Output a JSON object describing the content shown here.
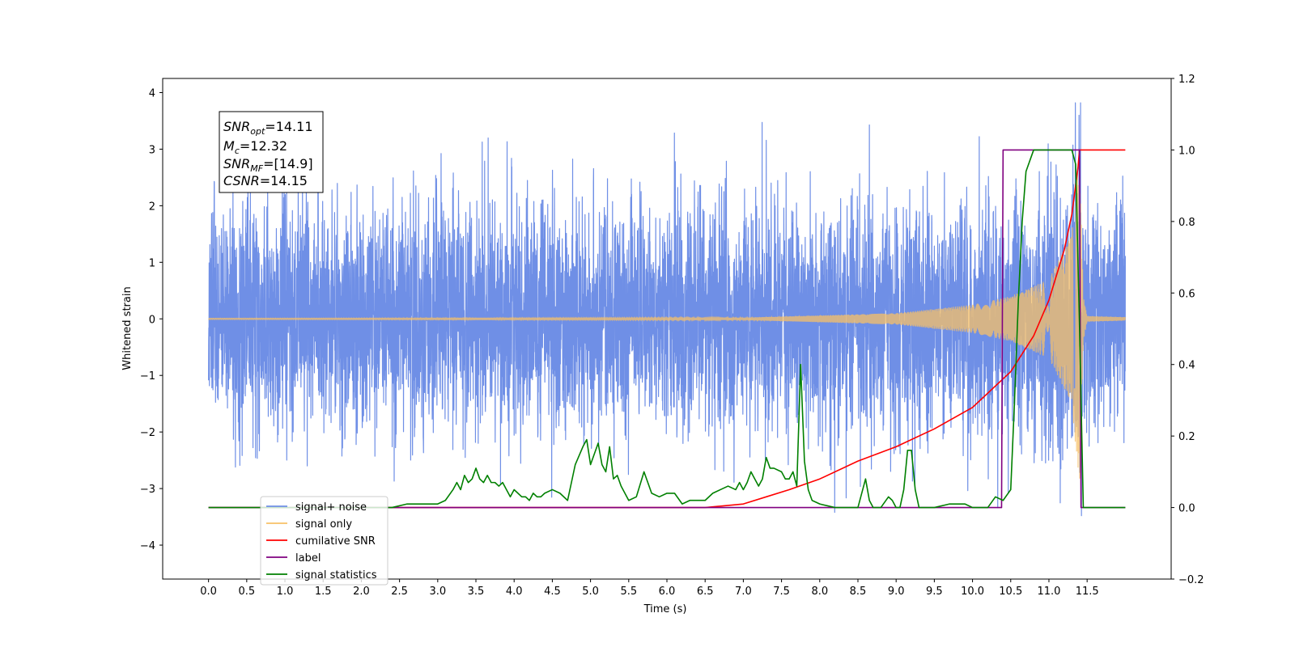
{
  "chart_data": {
    "type": "line",
    "xlabel": "Time (s)",
    "ylabel": "Whitened strain",
    "xlim": [
      -0.6,
      12.6
    ],
    "ylim": [
      -4.6,
      4.25
    ],
    "y2lim": [
      -0.2,
      1.2
    ],
    "x_ticks": [
      0.0,
      0.5,
      1.0,
      1.5,
      2.0,
      2.5,
      3.0,
      3.5,
      4.0,
      4.5,
      5.0,
      5.5,
      6.0,
      6.5,
      7.0,
      7.5,
      8.0,
      8.5,
      9.0,
      9.5,
      10.0,
      10.5,
      11.0,
      11.5
    ],
    "x_tick_labels": [
      "0.0",
      "0.5",
      "1.0",
      "1.5",
      "2.0",
      "2.5",
      "3.0",
      "3.5",
      "4.0",
      "4.5",
      "5.0",
      "5.5",
      "6.0",
      "6.5",
      "7.0",
      "7.5",
      "8.0",
      "8.5",
      "9.0",
      "9.5",
      "10.0",
      "10.5",
      "11.0",
      "11.5"
    ],
    "y_ticks": [
      -4,
      -3,
      -2,
      -1,
      0,
      1,
      2,
      3,
      4
    ],
    "y_tick_labels": [
      "−4",
      "−3",
      "−2",
      "−1",
      "0",
      "1",
      "2",
      "3",
      "4"
    ],
    "y2_ticks": [
      -0.2,
      0.0,
      0.2,
      0.4,
      0.6,
      0.8,
      1.0,
      1.2
    ],
    "y2_tick_labels": [
      "−0.2",
      "0.0",
      "0.2",
      "0.4",
      "0.6",
      "0.8",
      "1.0",
      "1.2"
    ],
    "grid": false,
    "legend_position": "lower-left",
    "info_box": {
      "snr_opt": "14.11",
      "mc": "12.32",
      "snr_mf": "[14.9]",
      "csnr": "14.15"
    },
    "series": [
      {
        "name": "signal+ noise",
        "axis": "left",
        "color": "#6f8fe6",
        "kind": "noise",
        "t_start": 0.0,
        "t_end": 12.0,
        "envelope_sigma": 1.0,
        "min": -3.65,
        "max": 3.82
      },
      {
        "name": "signal only",
        "axis": "left",
        "color": "#f7c067",
        "kind": "chirp",
        "t_start": 0.0,
        "t_end": 12.0,
        "merger_time": 11.4,
        "amplitude_points": [
          [
            0.0,
            0.01
          ],
          [
            7.0,
            0.02
          ],
          [
            8.0,
            0.06
          ],
          [
            9.0,
            0.1
          ],
          [
            10.0,
            0.25
          ],
          [
            10.5,
            0.4
          ],
          [
            11.0,
            0.7
          ],
          [
            11.3,
            1.5
          ],
          [
            11.4,
            3.0
          ],
          [
            11.45,
            0.4
          ],
          [
            11.5,
            0.05
          ],
          [
            12.0,
            0.03
          ]
        ]
      },
      {
        "name": "cumilative SNR",
        "axis": "right",
        "color": "#ff0000",
        "x": [
          0.0,
          6.5,
          7.0,
          7.3,
          7.6,
          8.0,
          8.5,
          9.0,
          9.5,
          10.0,
          10.5,
          10.8,
          11.0,
          11.2,
          11.3,
          11.38,
          11.4,
          12.0
        ],
        "y": [
          0.0,
          0.0,
          0.01,
          0.03,
          0.05,
          0.08,
          0.13,
          0.17,
          0.22,
          0.28,
          0.38,
          0.48,
          0.58,
          0.72,
          0.82,
          0.95,
          1.0,
          1.0
        ]
      },
      {
        "name": "label",
        "axis": "right",
        "color": "#800080",
        "x": [
          0.0,
          10.38,
          10.4,
          11.4,
          11.42,
          12.0
        ],
        "y": [
          0.0,
          0.0,
          1.0,
          1.0,
          0.0,
          0.0
        ]
      },
      {
        "name": "signal statistics",
        "axis": "right",
        "color": "#008000",
        "x": [
          0.0,
          2.4,
          2.6,
          2.8,
          3.0,
          3.1,
          3.2,
          3.25,
          3.3,
          3.35,
          3.4,
          3.45,
          3.5,
          3.55,
          3.6,
          3.65,
          3.7,
          3.75,
          3.8,
          3.85,
          3.9,
          3.95,
          4.0,
          4.05,
          4.1,
          4.15,
          4.2,
          4.25,
          4.3,
          4.35,
          4.4,
          4.5,
          4.6,
          4.7,
          4.8,
          4.9,
          4.95,
          5.0,
          5.05,
          5.1,
          5.15,
          5.2,
          5.25,
          5.3,
          5.35,
          5.4,
          5.5,
          5.6,
          5.7,
          5.8,
          5.9,
          6.0,
          6.1,
          6.2,
          6.3,
          6.4,
          6.5,
          6.6,
          6.7,
          6.8,
          6.9,
          6.95,
          7.0,
          7.05,
          7.1,
          7.15,
          7.2,
          7.25,
          7.3,
          7.35,
          7.4,
          7.5,
          7.55,
          7.6,
          7.65,
          7.7,
          7.75,
          7.8,
          7.85,
          7.9,
          8.0,
          8.2,
          8.4,
          8.5,
          8.6,
          8.65,
          8.7,
          8.75,
          8.8,
          8.9,
          8.95,
          9.0,
          9.05,
          9.1,
          9.15,
          9.2,
          9.25,
          9.3,
          9.35,
          9.5,
          9.7,
          9.8,
          9.9,
          10.0,
          10.2,
          10.3,
          10.4,
          10.5,
          10.55,
          10.6,
          10.65,
          10.7,
          10.75,
          10.8,
          11.0,
          11.3,
          11.35,
          11.4,
          11.45,
          12.0
        ],
        "y": [
          0.0,
          0.0,
          0.01,
          0.01,
          0.01,
          0.02,
          0.05,
          0.07,
          0.05,
          0.09,
          0.07,
          0.08,
          0.11,
          0.08,
          0.07,
          0.09,
          0.07,
          0.07,
          0.06,
          0.07,
          0.05,
          0.03,
          0.05,
          0.04,
          0.03,
          0.03,
          0.02,
          0.04,
          0.03,
          0.03,
          0.04,
          0.05,
          0.04,
          0.02,
          0.12,
          0.17,
          0.19,
          0.12,
          0.15,
          0.18,
          0.12,
          0.1,
          0.17,
          0.08,
          0.09,
          0.06,
          0.02,
          0.03,
          0.1,
          0.04,
          0.03,
          0.04,
          0.04,
          0.01,
          0.02,
          0.02,
          0.02,
          0.04,
          0.05,
          0.06,
          0.05,
          0.07,
          0.05,
          0.07,
          0.1,
          0.08,
          0.06,
          0.08,
          0.14,
          0.11,
          0.11,
          0.1,
          0.08,
          0.08,
          0.1,
          0.06,
          0.4,
          0.13,
          0.05,
          0.02,
          0.01,
          0.0,
          0.0,
          0.0,
          0.08,
          0.02,
          0.0,
          0.0,
          0.0,
          0.03,
          0.02,
          0.0,
          0.0,
          0.05,
          0.16,
          0.16,
          0.05,
          0.0,
          0.0,
          0.0,
          0.01,
          0.01,
          0.01,
          0.0,
          0.0,
          0.03,
          0.02,
          0.05,
          0.3,
          0.58,
          0.8,
          0.94,
          0.97,
          1.0,
          1.0,
          1.0,
          0.96,
          0.51,
          0.0,
          0.0
        ]
      }
    ]
  }
}
